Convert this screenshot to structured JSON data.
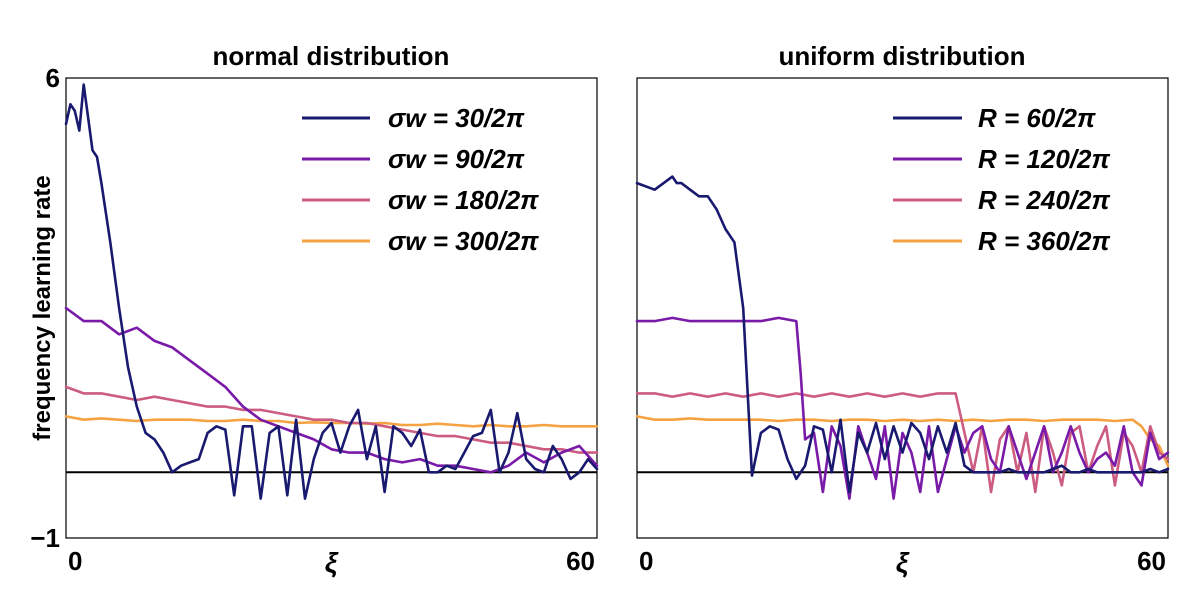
{
  "colors": {
    "navy": "#191970",
    "purple": "#7a1aa8",
    "rose": "#cc5c80",
    "orange": "#f5a342",
    "axis": "#000000"
  },
  "chart_data": [
    {
      "type": "line",
      "title": "normal distribution",
      "xlabel": "ξ",
      "ylabel": "frequency learning rate",
      "xlim": [
        0,
        60
      ],
      "ylim": [
        -1,
        6
      ],
      "x_ticks": [
        0,
        60
      ],
      "y_ticks": [
        6,
        -1
      ],
      "y_tick_labels": [
        "6",
        "−1"
      ],
      "reference_line_y": 0,
      "legend_position": "top-right",
      "series": [
        {
          "name": "σw = 30/2π",
          "color": "#191970",
          "x": [
            0,
            0.5,
            1,
            1.5,
            2,
            2.5,
            3,
            3.5,
            4,
            5,
            6,
            7,
            8,
            9,
            10,
            11,
            12,
            13,
            14,
            15,
            16,
            17,
            18,
            19,
            20,
            21,
            22,
            23,
            24,
            25,
            26,
            27,
            28,
            29,
            30,
            31,
            32,
            33,
            34,
            35,
            36,
            37,
            38,
            39,
            40,
            41,
            42,
            43,
            44,
            45,
            46,
            47,
            48,
            49,
            50,
            51,
            52,
            53,
            54,
            55,
            56,
            57,
            58,
            59,
            60
          ],
          "y": [
            5.3,
            5.6,
            5.5,
            5.2,
            5.9,
            5.4,
            4.9,
            4.8,
            4.4,
            3.5,
            2.5,
            1.6,
            1.0,
            0.6,
            0.5,
            0.3,
            0.0,
            0.1,
            0.15,
            0.2,
            0.6,
            0.7,
            0.65,
            -0.35,
            0.7,
            0.7,
            -0.4,
            0.6,
            0.7,
            -0.35,
            0.8,
            -0.4,
            0.2,
            0.6,
            0.75,
            0.3,
            0.7,
            0.95,
            0.2,
            0.7,
            -0.3,
            0.7,
            0.6,
            0.4,
            0.65,
            0.0,
            0.0,
            0.1,
            0.05,
            0.3,
            0.55,
            0.6,
            0.95,
            0.0,
            0.3,
            0.9,
            0.2,
            0.05,
            0.0,
            0.4,
            0.2,
            -0.1,
            0.0,
            0.2,
            0.05
          ]
        },
        {
          "name": "σw = 90/2π",
          "color": "#7a1aa8",
          "x": [
            0,
            2,
            4,
            6,
            8,
            10,
            12,
            14,
            16,
            18,
            20,
            22,
            24,
            26,
            28,
            30,
            32,
            34,
            36,
            38,
            40,
            42,
            44,
            46,
            48,
            50,
            52,
            54,
            56,
            58,
            60
          ],
          "y": [
            2.5,
            2.3,
            2.3,
            2.1,
            2.2,
            2.0,
            1.9,
            1.7,
            1.5,
            1.3,
            1.0,
            0.8,
            0.7,
            0.6,
            0.5,
            0.35,
            0.3,
            0.3,
            0.2,
            0.15,
            0.2,
            0.1,
            0.1,
            0.05,
            0.0,
            0.1,
            0.3,
            0.15,
            0.3,
            0.4,
            0.1
          ]
        },
        {
          "name": "σw = 180/2π",
          "color": "#cc5c80",
          "x": [
            0,
            2,
            4,
            6,
            8,
            10,
            12,
            14,
            16,
            18,
            20,
            22,
            24,
            26,
            28,
            30,
            32,
            34,
            36,
            38,
            40,
            42,
            44,
            46,
            48,
            50,
            52,
            54,
            56,
            58,
            60
          ],
          "y": [
            1.3,
            1.2,
            1.2,
            1.15,
            1.1,
            1.15,
            1.1,
            1.05,
            1.0,
            1.0,
            0.95,
            0.95,
            0.9,
            0.85,
            0.8,
            0.8,
            0.75,
            0.75,
            0.7,
            0.65,
            0.6,
            0.55,
            0.55,
            0.5,
            0.45,
            0.45,
            0.4,
            0.35,
            0.35,
            0.3,
            0.3
          ]
        },
        {
          "name": "σw = 300/2π",
          "color": "#f5a342",
          "x": [
            0,
            2,
            4,
            6,
            8,
            10,
            12,
            14,
            16,
            18,
            20,
            22,
            24,
            26,
            28,
            30,
            32,
            34,
            36,
            38,
            40,
            42,
            44,
            46,
            48,
            50,
            52,
            54,
            56,
            58,
            60
          ],
          "y": [
            0.85,
            0.8,
            0.82,
            0.8,
            0.78,
            0.8,
            0.8,
            0.8,
            0.78,
            0.78,
            0.8,
            0.78,
            0.78,
            0.75,
            0.76,
            0.75,
            0.75,
            0.74,
            0.75,
            0.72,
            0.72,
            0.74,
            0.72,
            0.7,
            0.72,
            0.7,
            0.7,
            0.72,
            0.7,
            0.7,
            0.7
          ]
        }
      ]
    },
    {
      "type": "line",
      "title": "uniform distribution",
      "xlabel": "ξ",
      "ylabel": "",
      "xlim": [
        0,
        60
      ],
      "ylim": [
        -1,
        6
      ],
      "x_ticks": [
        0,
        60
      ],
      "y_ticks": [],
      "y_tick_labels": [],
      "reference_line_y": 0,
      "legend_position": "top-right",
      "series": [
        {
          "name": "R = 60/2π",
          "color": "#191970",
          "x": [
            0,
            2,
            4,
            4.5,
            5,
            6,
            7,
            8,
            9,
            10,
            11,
            12,
            13,
            14,
            15,
            16,
            17,
            18,
            19,
            20,
            21,
            22,
            23,
            24,
            25,
            26,
            27,
            28,
            29,
            30,
            31,
            32,
            33,
            34,
            35,
            36,
            37,
            38,
            39,
            40,
            41,
            42,
            43,
            44,
            45,
            46,
            47,
            48,
            49,
            50,
            51,
            52,
            53,
            54,
            55,
            56,
            57,
            58,
            59,
            60
          ],
          "y": [
            4.4,
            4.3,
            4.5,
            4.4,
            4.4,
            4.3,
            4.2,
            4.2,
            4.0,
            3.7,
            3.5,
            2.5,
            -0.05,
            0.6,
            0.7,
            0.65,
            0.2,
            -0.1,
            0.1,
            0.7,
            0.65,
            0.0,
            0.8,
            -0.3,
            0.6,
            0.3,
            0.75,
            0.2,
            0.7,
            0.3,
            0.75,
            0.6,
            0.2,
            0.7,
            0.3,
            0.75,
            0.1,
            0.0,
            0.0,
            0.0,
            0.0,
            0.05,
            0.0,
            0.0,
            0.0,
            0.0,
            0.05,
            0.1,
            0.0,
            0.0,
            0.05,
            0.0,
            0.0,
            0.0,
            0.0,
            0.0,
            0.0,
            0.05,
            0.0,
            0.05
          ]
        },
        {
          "name": "R = 120/2π",
          "color": "#7a1aa8",
          "x": [
            0,
            2,
            4,
            6,
            8,
            10,
            12,
            14,
            16,
            18,
            18.5,
            19,
            20,
            21,
            22,
            23,
            24,
            25,
            26,
            27,
            28,
            29,
            30,
            31,
            32,
            33,
            34,
            35,
            36,
            37,
            38,
            39,
            40,
            41,
            42,
            43,
            44,
            45,
            46,
            47,
            48,
            49,
            50,
            51,
            52,
            53,
            54,
            55,
            56,
            57,
            58,
            59,
            60
          ],
          "y": [
            2.3,
            2.3,
            2.35,
            2.3,
            2.3,
            2.3,
            2.3,
            2.3,
            2.35,
            2.3,
            1.5,
            0.5,
            0.6,
            -0.3,
            0.7,
            0.4,
            -0.4,
            0.7,
            0.3,
            -0.1,
            0.7,
            -0.4,
            0.6,
            0.3,
            -0.3,
            0.7,
            -0.3,
            0.2,
            0.7,
            0.3,
            0.6,
            0.7,
            0.2,
            0.0,
            0.7,
            0.3,
            -0.1,
            0.3,
            0.7,
            0.0,
            0.3,
            0.7,
            0.3,
            0.0,
            0.2,
            0.3,
            0.1,
            0.7,
            0.0,
            -0.2,
            0.6,
            0.2,
            0.3
          ]
        },
        {
          "name": "R = 240/2π",
          "color": "#cc5c80",
          "x": [
            0,
            2,
            4,
            6,
            8,
            10,
            12,
            14,
            16,
            18,
            20,
            22,
            24,
            26,
            28,
            30,
            32,
            34,
            36,
            37,
            38,
            39,
            40,
            41,
            42,
            43,
            44,
            45,
            46,
            47,
            48,
            49,
            50,
            51,
            52,
            53,
            54,
            55,
            56,
            57,
            58,
            59,
            60
          ],
          "y": [
            1.2,
            1.2,
            1.15,
            1.2,
            1.15,
            1.2,
            1.15,
            1.2,
            1.15,
            1.2,
            1.15,
            1.2,
            1.15,
            1.2,
            1.15,
            1.2,
            1.15,
            1.2,
            1.2,
            0.6,
            0.0,
            0.7,
            -0.3,
            0.5,
            0.7,
            0.0,
            0.6,
            -0.3,
            0.7,
            0.3,
            -0.2,
            0.6,
            0.7,
            0.0,
            0.4,
            0.7,
            -0.2,
            0.6,
            0.4,
            0.0,
            0.7,
            0.3,
            0.2
          ]
        },
        {
          "name": "R = 360/2π",
          "color": "#f5a342",
          "x": [
            0,
            2,
            4,
            6,
            8,
            10,
            12,
            14,
            16,
            18,
            20,
            22,
            24,
            26,
            28,
            30,
            32,
            34,
            36,
            38,
            40,
            42,
            44,
            46,
            48,
            50,
            52,
            54,
            56,
            57,
            58,
            59,
            60
          ],
          "y": [
            0.85,
            0.8,
            0.8,
            0.82,
            0.8,
            0.8,
            0.8,
            0.8,
            0.78,
            0.8,
            0.8,
            0.78,
            0.8,
            0.8,
            0.78,
            0.8,
            0.78,
            0.8,
            0.78,
            0.8,
            0.78,
            0.8,
            0.8,
            0.78,
            0.8,
            0.8,
            0.8,
            0.78,
            0.8,
            0.7,
            0.5,
            0.4,
            0.1
          ]
        }
      ]
    }
  ]
}
